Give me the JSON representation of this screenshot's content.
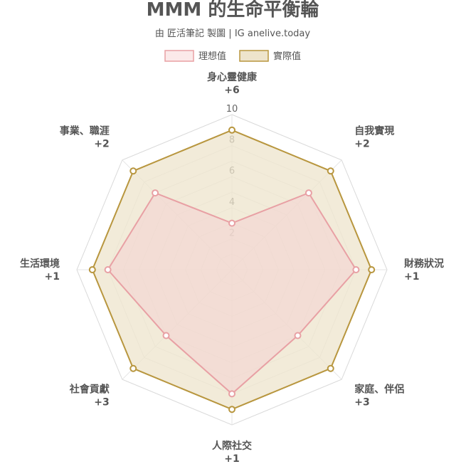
{
  "chart_data": {
    "type": "radar",
    "title": "MMM 的生命平衡輪",
    "subtitle": "由 匠活筆記 製圖 | IG anelive.today",
    "categories": [
      "身心靈健康",
      "自我實現",
      "財務狀況",
      "家庭、伴侶",
      "人際社交",
      "社會貢獻",
      "生活環境",
      "事業、職涯"
    ],
    "deltas": [
      "+6",
      "+2",
      "+1",
      "+3",
      "+1",
      "+3",
      "+1",
      "+2"
    ],
    "series": [
      {
        "name": "理想值",
        "values": [
          3,
          7,
          8,
          6,
          8,
          6,
          8,
          7
        ],
        "stroke": "#e8a0a4",
        "fill": "#f4d4d2"
      },
      {
        "name": "實際值",
        "values": [
          9,
          9,
          9,
          9,
          9,
          9,
          9,
          9
        ],
        "stroke": "#b8963e",
        "fill": "#eee4cc"
      }
    ],
    "r_range": [
      0,
      10
    ],
    "ticks": [
      "2",
      "4",
      "6",
      "8",
      "10"
    ],
    "grid": true,
    "legend_position": "top"
  }
}
